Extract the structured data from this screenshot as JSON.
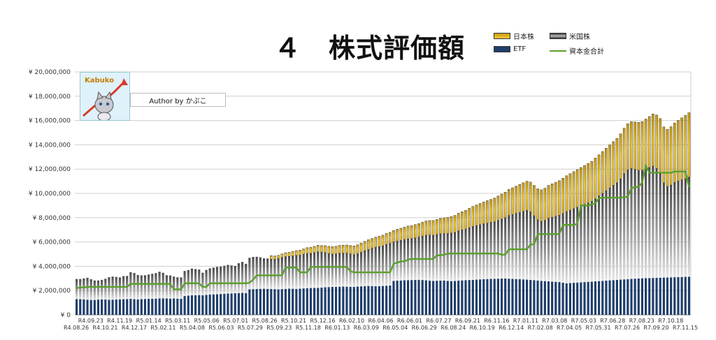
{
  "chart_data": {
    "type": "bar",
    "title": "４　株式評価額",
    "author": "Author by かぶこ",
    "badge": "Kabuko",
    "legend": [
      {
        "name": "日本株",
        "color": "#f0c12a"
      },
      {
        "name": "米国株",
        "color": "#666666"
      },
      {
        "name": "ETF",
        "color": "#1f3f6b"
      },
      {
        "name": "資本金合計",
        "color": "#5aa02c"
      }
    ],
    "yticks": [
      "¥ 0",
      "¥ 2,000,000",
      "¥ 4,000,000",
      "¥ 6,000,000",
      "¥ 8,000,000",
      "¥ 10,000,000",
      "¥ 12,000,000",
      "¥ 14,000,000",
      "¥ 16,000,000",
      "¥ 18,000,000",
      "¥ 20,000,000"
    ],
    "ylim": [
      0,
      20000000
    ],
    "grid": true,
    "legend_position": "top-right",
    "xticks_lower": [
      "R4.08.26",
      "R4.10.21",
      "R4.12.17",
      "R5.02.11",
      "R5.04.08",
      "R5.06.03",
      "R5.07.29",
      "R5.09.23",
      "R5.11.18",
      "R6.01.13",
      "R6.03.09",
      "R6.05.04",
      "R6.06.29",
      "R6.08.24",
      "R6.10.19",
      "R6.12.14",
      "R7.02.08",
      "R7.04.05",
      "R7.05.31",
      "R7.07.26",
      "R7.09.20",
      "R7.11.15"
    ],
    "xticks_upper": [
      "R4.09.23",
      "R4.11.19",
      "R5.01.14",
      "R5.03.11",
      "R5.05.06",
      "R5.07.01",
      "R5.08.26",
      "R5.10.21",
      "R5.12.16",
      "R6.02.10",
      "R6.04.06",
      "R6.06.01",
      "R6.07.27",
      "R6.09.21",
      "R6.11.16",
      "R7.01.11",
      "R7.03.08",
      "R7.05.03",
      "R7.06.28",
      "R7.08.23",
      "R7.10.18"
    ],
    "series": [
      {
        "name": "ETF",
        "values": [
          1300000,
          1300000,
          1280000,
          1250000,
          1230000,
          1230000,
          1260000,
          1280000,
          1270000,
          1250000,
          1250000,
          1270000,
          1280000,
          1290000,
          1300000,
          1320000,
          1300000,
          1280000,
          1300000,
          1310000,
          1320000,
          1330000,
          1340000,
          1350000,
          1360000,
          1360000,
          1340000,
          1350000,
          1340000,
          1330000,
          1560000,
          1590000,
          1610000,
          1620000,
          1630000,
          1620000,
          1650000,
          1680000,
          1690000,
          1700000,
          1720000,
          1740000,
          1760000,
          1770000,
          1780000,
          1800000,
          1810000,
          1800000,
          2100000,
          2120000,
          2130000,
          2140000,
          2150000,
          2140000,
          2130000,
          2120000,
          2100000,
          2120000,
          2140000,
          2160000,
          2150000,
          2140000,
          2160000,
          2180000,
          2200000,
          2210000,
          2220000,
          2230000,
          2250000,
          2270000,
          2290000,
          2300000,
          2310000,
          2320000,
          2330000,
          2320000,
          2310000,
          2300000,
          2330000,
          2350000,
          2370000,
          2380000,
          2370000,
          2360000,
          2360000,
          2380000,
          2400000,
          2420000,
          2800000,
          2820000,
          2830000,
          2850000,
          2860000,
          2870000,
          2880000,
          2890000,
          2870000,
          2850000,
          2820000,
          2800000,
          2810000,
          2820000,
          2830000,
          2800000,
          2780000,
          2790000,
          2820000,
          2840000,
          2860000,
          2870000,
          2880000,
          2900000,
          2920000,
          2940000,
          2950000,
          2960000,
          2970000,
          2980000,
          2990000,
          3000000,
          2980000,
          2960000,
          2950000,
          2940000,
          2920000,
          2900000,
          2880000,
          2860000,
          2830000,
          2800000,
          2780000,
          2760000,
          2740000,
          2720000,
          2700000,
          2650000,
          2600000,
          2620000,
          2640000,
          2660000,
          2680000,
          2700000,
          2720000,
          2740000,
          2760000,
          2780000,
          2800000,
          2820000,
          2840000,
          2860000,
          2880000,
          2900000,
          2920000,
          2940000,
          2960000,
          2980000,
          3000000,
          3010000,
          3020000,
          3030000,
          3040000,
          3050000,
          3060000,
          3070000,
          3080000,
          3090000,
          3100000,
          3110000,
          3120000,
          3130000,
          3140000
        ]
      },
      {
        "name": "米国株",
        "values": [
          1650000,
          1650000,
          1720000,
          1800000,
          1700000,
          1600000,
          1570000,
          1600000,
          1700000,
          1850000,
          1900000,
          1850000,
          1800000,
          1900000,
          1900000,
          2200000,
          2150000,
          2000000,
          1950000,
          1950000,
          2000000,
          2050000,
          2100000,
          2200000,
          2100000,
          1900000,
          1900000,
          1800000,
          1750000,
          1750000,
          2050000,
          2100000,
          2200000,
          2150000,
          2100000,
          1850000,
          2050000,
          2150000,
          2200000,
          2250000,
          2250000,
          2300000,
          2350000,
          2300000,
          2250000,
          2450000,
          2550000,
          2400000,
          2600000,
          2650000,
          2650000,
          2600000,
          2500000,
          2500000,
          2450000,
          2450000,
          2550000,
          2600000,
          2650000,
          2650000,
          2700000,
          2750000,
          2750000,
          2800000,
          2850000,
          2850000,
          2900000,
          2950000,
          2900000,
          2850000,
          2750000,
          2700000,
          2700000,
          2750000,
          2750000,
          2750000,
          2700000,
          2650000,
          2700000,
          2800000,
          2900000,
          3000000,
          3100000,
          3200000,
          3250000,
          3300000,
          3400000,
          3450000,
          3200000,
          3250000,
          3300000,
          3350000,
          3400000,
          3400000,
          3450000,
          3500000,
          3600000,
          3700000,
          3750000,
          3750000,
          3800000,
          3850000,
          3850000,
          3900000,
          3950000,
          4000000,
          4100000,
          4150000,
          4200000,
          4300000,
          4400000,
          4450000,
          4500000,
          4550000,
          4600000,
          4650000,
          4700000,
          4800000,
          4900000,
          5000000,
          5200000,
          5300000,
          5400000,
          5500000,
          5600000,
          5700000,
          5600000,
          5300000,
          5000000,
          4900000,
          5000000,
          5200000,
          5300000,
          5400000,
          5500000,
          5700000,
          5900000,
          6000000,
          6100000,
          6200000,
          6300000,
          6400000,
          6500000,
          6600000,
          6800000,
          7000000,
          7200000,
          7400000,
          7600000,
          7800000,
          8000000,
          8300000,
          8700000,
          9000000,
          9100000,
          9000000,
          8900000,
          8900000,
          9000000,
          9100000,
          9200000,
          9000000,
          8600000,
          7800000,
          7500000,
          7600000,
          7800000,
          7900000,
          8000000,
          8100000,
          8200000
        ]
      },
      {
        "name": "日本株",
        "values": [
          0,
          0,
          0,
          0,
          0,
          0,
          0,
          0,
          0,
          0,
          0,
          0,
          0,
          0,
          0,
          0,
          0,
          0,
          0,
          0,
          0,
          0,
          0,
          0,
          0,
          0,
          0,
          0,
          0,
          0,
          0,
          0,
          0,
          0,
          0,
          0,
          0,
          0,
          0,
          0,
          0,
          0,
          0,
          0,
          0,
          0,
          0,
          0,
          0,
          0,
          0,
          0,
          0,
          0,
          300000,
          280000,
          250000,
          300000,
          320000,
          340000,
          380000,
          400000,
          420000,
          450000,
          480000,
          500000,
          520000,
          550000,
          560000,
          580000,
          600000,
          620000,
          640000,
          650000,
          660000,
          680000,
          700000,
          720000,
          740000,
          760000,
          780000,
          800000,
          820000,
          840000,
          860000,
          880000,
          900000,
          920000,
          950000,
          980000,
          1000000,
          1020000,
          1050000,
          1080000,
          1100000,
          1120000,
          1150000,
          1180000,
          1200000,
          1220000,
          1250000,
          1280000,
          1300000,
          1330000,
          1360000,
          1400000,
          1450000,
          1500000,
          1550000,
          1600000,
          1650000,
          1700000,
          1750000,
          1800000,
          1850000,
          1900000,
          1950000,
          2000000,
          2050000,
          2100000,
          2150000,
          2200000,
          2250000,
          2300000,
          2350000,
          2400000,
          2450000,
          2500000,
          2550000,
          2600000,
          2650000,
          2700000,
          2750000,
          2800000,
          2850000,
          2900000,
          2950000,
          3000000,
          3050000,
          3100000,
          3150000,
          3200000,
          3250000,
          3300000,
          3350000,
          3400000,
          3450000,
          3500000,
          3550000,
          3600000,
          3650000,
          3700000,
          3750000,
          3800000,
          3850000,
          3900000,
          3950000,
          4000000,
          4100000,
          4200000,
          4300000,
          4400000,
          4500000,
          4600000,
          4700000,
          4800000,
          4900000,
          5000000,
          5100000,
          5200000,
          5300000,
          5400000,
          5500000,
          5600000,
          5700000,
          5800000,
          5900000,
          6000000
        ]
      },
      {
        "name": "資本金合計",
        "values": [
          2200000,
          2250000,
          2250000,
          2300000,
          2300000,
          2300000,
          2300000,
          2300000,
          2300000,
          2300000,
          2300000,
          2300000,
          2300000,
          2300000,
          2300000,
          2550000,
          2550000,
          2550000,
          2550000,
          2550000,
          2550000,
          2550000,
          2550000,
          2550000,
          2550000,
          2550000,
          2550000,
          2100000,
          2100000,
          2100000,
          2600000,
          2600000,
          2600000,
          2600000,
          2600000,
          2300000,
          2300000,
          2600000,
          2600000,
          2600000,
          2600000,
          2600000,
          2600000,
          2600000,
          2600000,
          2600000,
          2600000,
          2600000,
          2650000,
          2900000,
          3250000,
          3250000,
          3250000,
          3250000,
          3250000,
          3250000,
          3250000,
          3250000,
          3900000,
          3900000,
          3900000,
          3900000,
          3500000,
          3500000,
          3500000,
          3950000,
          3950000,
          3950000,
          3950000,
          3950000,
          3950000,
          3950000,
          3950000,
          3950000,
          3950000,
          3950000,
          3600000,
          3500000,
          3500000,
          3500000,
          3500000,
          3500000,
          3500000,
          3500000,
          3500000,
          3500000,
          3500000,
          3500000,
          4200000,
          4300000,
          4400000,
          4400000,
          4550000,
          4600000,
          4600000,
          4600000,
          4600000,
          4600000,
          4600000,
          4600000,
          4900000,
          4900000,
          4950000,
          5050000,
          5050000,
          5050000,
          5050000,
          5050000,
          5050000,
          5050000,
          5050000,
          5050000,
          5050000,
          5050000,
          5050000,
          5050000,
          5050000,
          5050000,
          4950000,
          4950000,
          5400000,
          5400000,
          5400000,
          5400000,
          5400000,
          5400000,
          5800000,
          5800000,
          6650000,
          6650000,
          6650000,
          6650000,
          6650000,
          6650000,
          6650000,
          7400000,
          7400000,
          7400000,
          7400000,
          7500000,
          9000000,
          9000000,
          9000000,
          9100000,
          9200000,
          9600000,
          9650000,
          9650000,
          9650000,
          9650000,
          9650000,
          9650000,
          9700000,
          9700000,
          10450000,
          10500000,
          10550000,
          10900000,
          12300000,
          11700000,
          11700000,
          11700000,
          11700000,
          11700000,
          11700000,
          11700000,
          11800000,
          11800000,
          11800000,
          11800000,
          10500000,
          10400000,
          10400000,
          10400000,
          9800000,
          9800000
        ]
      }
    ]
  }
}
